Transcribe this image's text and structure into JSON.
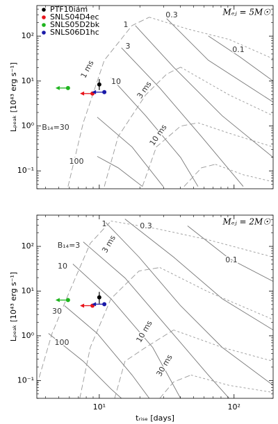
{
  "chart_data": [
    {
      "type": "scatter",
      "ylabel": "Lₚₑₐₖ [10⁴³ erg s⁻¹]",
      "annotation": "Mₑⱼ = 5M☉",
      "xscale": "log",
      "yscale": "log",
      "legend": "upper left",
      "show_xticklabels": false,
      "xlim": [
        3.44,
        195
      ],
      "ylim": [
        0.04,
        480
      ],
      "xticks": [
        {
          "value": 10,
          "label": "10¹"
        },
        {
          "value": 100,
          "label": "10²"
        }
      ],
      "yticks": [
        {
          "value": 0.1,
          "label": "10⁻¹"
        },
        {
          "value": 1,
          "label": "10⁰"
        },
        {
          "value": 10,
          "label": "10¹"
        },
        {
          "value": 100,
          "label": "10²"
        }
      ],
      "series": [
        {
          "name": "PTF10iam",
          "color": "#000000",
          "x": [
            10
          ],
          "values": [
            8.4
          ],
          "ylow": [
            6.3
          ],
          "yhigh": [
            11.1
          ]
        },
        {
          "name": "SNLS04D4ec",
          "color": "#e8141b",
          "x": [
            8.9
          ],
          "values": [
            5.27
          ],
          "x_upper_limit": true
        },
        {
          "name": "SNLS05D2bk",
          "color": "#1eb41e",
          "x": [
            5.86
          ],
          "values": [
            7
          ],
          "x_upper_limit": true
        },
        {
          "name": "SNLS06D1hc",
          "color": "#1a1aa8",
          "x": [
            10.9
          ],
          "values": [
            5.66
          ],
          "x_upper_limit": true
        }
      ],
      "curves": [
        {
          "label": "0.1",
          "style": "solid",
          "x": [
            64.4,
            110,
            195
          ],
          "values": [
            101,
            34.8,
            10
          ]
        },
        {
          "label": "0.3",
          "style": "solid",
          "x": [
            31.6,
            64.4,
            195
          ],
          "values": [
            246,
            29.1,
            3.4
          ]
        },
        {
          "label": "1",
          "style": "solid",
          "x": [
            18.5,
            35.6,
            81.7,
            195
          ],
          "values": [
            172,
            20.4,
            1.69,
            0.2
          ]
        },
        {
          "label": "3",
          "style": "solid",
          "x": [
            14.6,
            28.1,
            57.3,
            117
          ],
          "values": [
            55.2,
            7,
            0.58,
            0.045
          ]
        },
        {
          "label": "10",
          "style": "solid",
          "x": [
            12.2,
            22.1,
            40.1,
            54
          ],
          "values": [
            11.9,
            1.69,
            0.2,
            0.045
          ]
        },
        {
          "label": "B₁₄=30",
          "style": "solid",
          "x": [
            9.66,
            17.5,
            29.8
          ],
          "values": [
            1.57,
            0.34,
            0.045
          ]
        },
        {
          "label": "100",
          "style": "solid",
          "x": [
            9.66,
            13.8,
            20.9
          ],
          "values": [
            0.21,
            0.117,
            0.045
          ]
        },
        {
          "label": "1 ms",
          "style": "dashed",
          "x": [
            5.86,
            7.6,
            10.9,
            17.5,
            23.5
          ],
          "values": [
            0.045,
            1.18,
            29.1,
            172,
            264
          ]
        },
        {
          "label": "3 ms",
          "style": "dashed",
          "x": [
            10.9,
            13.8,
            22.1,
            31.6,
            40.1
          ],
          "values": [
            0.045,
            0.58,
            4.91,
            14.3,
            20.4
          ]
        },
        {
          "label": "10 ms",
          "style": "dashed",
          "x": [
            20.9,
            26.5,
            40.1,
            54
          ],
          "values": [
            0.045,
            0.34,
            0.99,
            1.18
          ]
        },
        {
          "style": "dashed",
          "x": [
            42.6,
            57.3,
            72.6
          ],
          "values": [
            0.045,
            0.117,
            0.14
          ]
        },
        {
          "style": "dotted",
          "x": [
            23.5,
            45.2,
            92,
            195
          ],
          "values": [
            264,
            144,
            84.6,
            31.3
          ]
        },
        {
          "style": "dotted",
          "x": [
            40.1,
            92,
            195
          ],
          "values": [
            20.4,
            4.91,
            1.69
          ]
        },
        {
          "style": "dotted",
          "x": [
            54,
            92,
            195
          ],
          "values": [
            1.18,
            0.69,
            0.34
          ]
        },
        {
          "style": "dotted",
          "x": [
            72.6,
            117,
            195
          ],
          "values": [
            0.14,
            0.082,
            0.057
          ]
        }
      ]
    },
    {
      "type": "scatter",
      "xlabel": "tᵣᵢₛₑ [days]",
      "ylabel": "Lₚₑₐₖ [10⁴³ erg s⁻¹]",
      "annotation": "Mₑⱼ = 2M☉",
      "xscale": "log",
      "yscale": "log",
      "show_xticklabels": true,
      "xlim": [
        3.44,
        195
      ],
      "ylim": [
        0.04,
        500
      ],
      "xticks": [
        {
          "value": 10,
          "label": "10¹"
        },
        {
          "value": 100,
          "label": "10²"
        }
      ],
      "yticks": [
        {
          "value": 0.1,
          "label": "10⁻¹"
        },
        {
          "value": 1,
          "label": "10⁰"
        },
        {
          "value": 10,
          "label": "10¹"
        },
        {
          "value": 100,
          "label": "10²"
        }
      ],
      "series": [
        {
          "color": "#000000",
          "x": [
            10
          ],
          "values": [
            7.25
          ],
          "ylow": [
            5.25
          ],
          "yhigh": [
            9.6
          ]
        },
        {
          "color": "#e8141b",
          "x": [
            8.9
          ],
          "values": [
            4.72
          ],
          "x_upper_limit": true
        },
        {
          "color": "#1eb41e",
          "x": [
            5.86
          ],
          "values": [
            6.3
          ],
          "x_upper_limit": true
        },
        {
          "color": "#1a1aa8",
          "x": [
            10.9
          ],
          "values": [
            5.1
          ],
          "x_upper_limit": true
        }
      ],
      "curves": [
        {
          "label": "0.1",
          "style": "solid",
          "x": [
            45.2,
            92,
            195
          ],
          "values": [
            287,
            53.6,
            16.5
          ]
        },
        {
          "label": "0.3",
          "style": "solid",
          "x": [
            15.5,
            35.6,
            81.7,
            195
          ],
          "values": [
            409,
            57.5,
            6.75,
            1.35
          ]
        },
        {
          "label": "1",
          "style": "solid",
          "x": [
            10.9,
            19.7,
            40.1,
            81.7,
            195
          ],
          "values": [
            368,
            57.5,
            4.72,
            0.55,
            0.078
          ]
        },
        {
          "label": "B₁₄=3",
          "style": "solid",
          "x": [
            7.6,
            15.5,
            31.6,
            64.4,
            92
          ],
          "values": [
            126,
            19.7,
            1.62,
            0.133,
            0.04
          ]
        },
        {
          "label": "10",
          "style": "solid",
          "x": [
            6.37,
            12.2,
            24.9,
            40.1
          ],
          "values": [
            40.3,
            6.75,
            0.55,
            0.04
          ]
        },
        {
          "label": "30",
          "style": "solid",
          "x": [
            5.52,
            9.66,
            17.5,
            23.5
          ],
          "values": [
            4.72,
            1.13,
            0.133,
            0.04
          ]
        },
        {
          "label": "100",
          "style": "solid",
          "x": [
            4.2,
            7.6,
            12.2,
            14.6
          ],
          "values": [
            1.13,
            0.27,
            0.065,
            0.04
          ]
        },
        {
          "style": "dashed",
          "x": [
            3.44,
            4.46,
            6.0,
            8.57,
            12.2
          ],
          "values": [
            0.078,
            1.13,
            9.6,
            117,
            368
          ]
        },
        {
          "label": "3 ms",
          "style": "dashed",
          "x": [
            7.17,
            8.57,
            12.2,
            19.7,
            28.1
          ],
          "values": [
            0.04,
            0.55,
            6.75,
            28.2,
            33.7
          ]
        },
        {
          "label": "10 ms",
          "style": "dashed",
          "x": [
            13,
            15.5,
            22.1,
            35.6
          ],
          "values": [
            0.04,
            0.27,
            0.55,
            1.35
          ]
        },
        {
          "label": "30 ms",
          "style": "dashed",
          "x": [
            28.1,
            35.6,
            47.9
          ],
          "values": [
            0.04,
            0.093,
            0.133
          ]
        },
        {
          "style": "dotted",
          "x": [
            12.2,
            28.1,
            64.4,
            195
          ],
          "values": [
            368,
            240,
            140,
            57.5
          ]
        },
        {
          "style": "dotted",
          "x": [
            28.1,
            64.4,
            195
          ],
          "values": [
            33.7,
            9.6,
            2.31
          ]
        },
        {
          "style": "dotted",
          "x": [
            35.6,
            81.7,
            195
          ],
          "values": [
            1.35,
            0.55,
            0.27
          ]
        },
        {
          "style": "dotted",
          "x": [
            47.9,
            92,
            195
          ],
          "values": [
            0.133,
            0.078,
            0.054
          ]
        }
      ]
    }
  ]
}
